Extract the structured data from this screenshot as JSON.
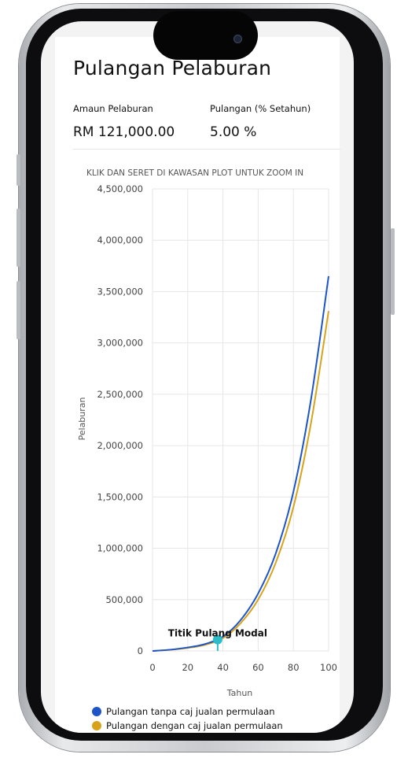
{
  "page": {
    "title": "Pulangan Pelaburan"
  },
  "summary": {
    "investment_label": "Amaun Pelaburan",
    "investment_value": "RM 121,000.00",
    "return_label": "Pulangan (% Setahun)",
    "return_value": "5.00 %"
  },
  "chart_hint": "KLIK DAN SERET DI KAWASAN PLOT UNTUK ZOOM IN",
  "colors": {
    "series_no_fee": "#1d55c9",
    "series_with_fee": "#d8a31a",
    "breakeven_marker": "#2bbdc9"
  },
  "chart_data": {
    "type": "line",
    "xlabel": "Tahun",
    "ylabel": "Pelaburan",
    "xlim": [
      0,
      100
    ],
    "ylim": [
      0,
      4500000
    ],
    "x_ticks": [
      "0",
      "20",
      "40",
      "60",
      "80",
      "100"
    ],
    "y_ticks": [
      "0",
      "500,000",
      "1,000,000",
      "1,500,000",
      "2,000,000",
      "2,500,000",
      "3,000,000",
      "3,500,000",
      "4,000,000",
      "4,500,000"
    ],
    "grid": true,
    "legend_position": "bottom",
    "x": [
      0,
      10,
      20,
      30,
      40,
      50,
      60,
      70,
      80,
      90,
      100
    ],
    "series": [
      {
        "name": "Pulangan tanpa caj jualan permulaan",
        "values": [
          0,
          12000,
          34000,
          68000,
          140000,
          300000,
          560000,
          950000,
          1550000,
          2450000,
          3650000
        ]
      },
      {
        "name": "Pulangan dengan caj jualan permulaan",
        "values": [
          0,
          11000,
          30000,
          60000,
          125000,
          270000,
          500000,
          860000,
          1400000,
          2220000,
          3310000
        ]
      }
    ],
    "annotation": {
      "label": "Titik Pulang Modal",
      "x": 37,
      "y": 110000
    }
  }
}
